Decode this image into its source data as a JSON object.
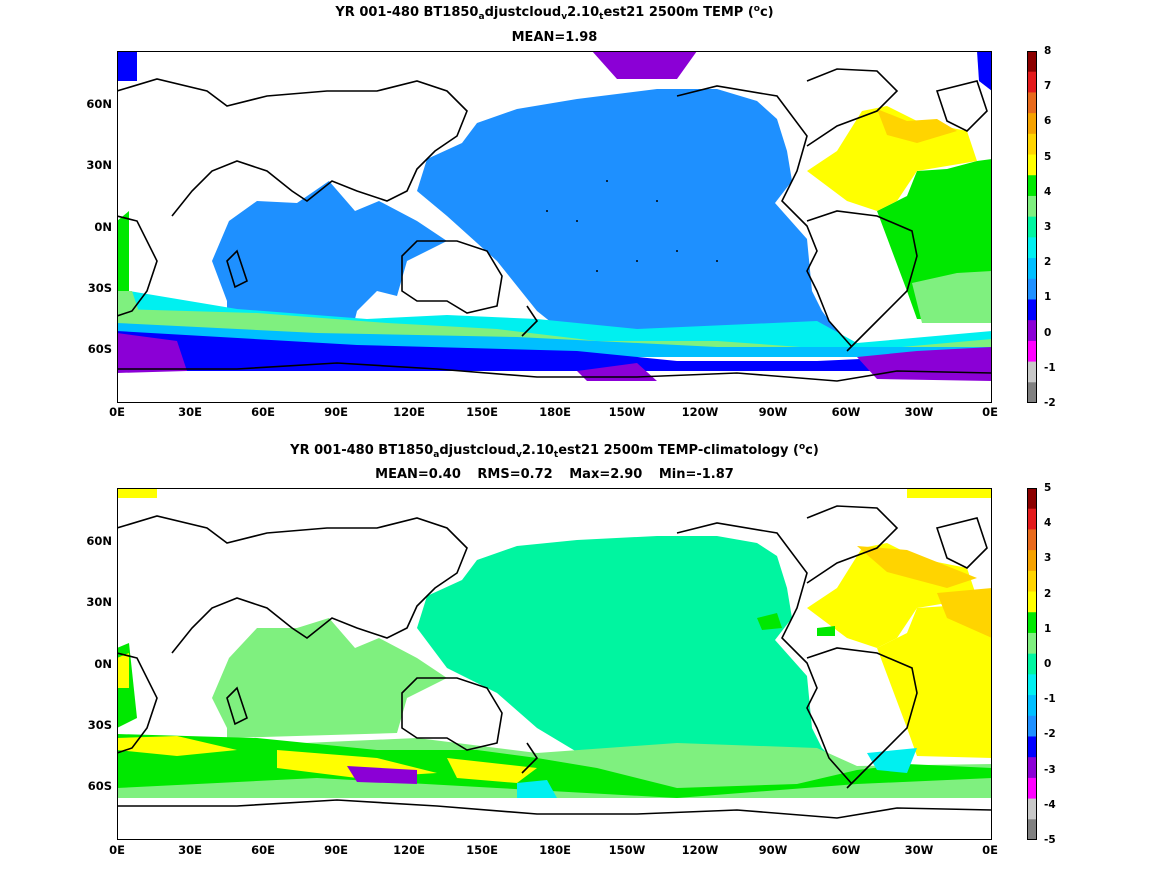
{
  "panels": [
    {
      "title_parts": {
        "a": "YR 001-480 BT1850",
        "s1": "a",
        "b": "djustcloud",
        "s2": "v",
        "c": "2.10",
        "s3": "t",
        "d": "est21 2500m TEMP (",
        "sup": "o",
        "e": "c)"
      },
      "stats": [
        "MEAN=1.98"
      ],
      "colorbar_labels": [
        "8",
        "7",
        "6",
        "5",
        "4",
        "3",
        "2",
        "1",
        "0",
        "-1",
        "-2"
      ],
      "colorbar_colors": [
        "#8b0000",
        "#e31a1c",
        "#e86a1c",
        "#f5a200",
        "#ffd400",
        "#ffff00",
        "#00e800",
        "#7ff07f",
        "#00f5a0",
        "#00f0f0",
        "#00bfff",
        "#1e90ff",
        "#0000ff",
        "#8b00d6",
        "#ff00ff",
        "#c8c8c8",
        "#808080"
      ]
    },
    {
      "title_parts": {
        "a": "YR 001-480 BT1850",
        "s1": "a",
        "b": "djustcloud",
        "s2": "v",
        "c": "2.10",
        "s3": "t",
        "d": "est21 2500m TEMP-climatology (",
        "sup": "o",
        "e": "c)"
      },
      "stats": [
        "MEAN=0.40",
        "RMS=0.72",
        "Max=2.90",
        "Min=-1.87"
      ],
      "colorbar_labels": [
        "5",
        "4",
        "3",
        "2",
        "1",
        "0",
        "-1",
        "-2",
        "-3",
        "-4",
        "-5"
      ],
      "colorbar_colors": [
        "#8b0000",
        "#e31a1c",
        "#e86a1c",
        "#f5a200",
        "#ffd400",
        "#ffff00",
        "#00e800",
        "#7ff07f",
        "#00f5a0",
        "#00f0f0",
        "#00bfff",
        "#1e90ff",
        "#0000ff",
        "#8b00d6",
        "#ff00ff",
        "#c8c8c8",
        "#808080"
      ]
    }
  ],
  "x_ticks": [
    "0E",
    "30E",
    "60E",
    "90E",
    "120E",
    "150E",
    "180E",
    "150W",
    "120W",
    "90W",
    "60W",
    "30W",
    "0E"
  ],
  "y_ticks": [
    "60N",
    "30N",
    "0N",
    "30S",
    "60S"
  ],
  "fill_colors": {
    "top_atlantic_north": "#ffff00",
    "top_atlantic_north_core": "#ffd400",
    "top_atlantic_south": "#00e800",
    "top_atlantic_south_lo": "#7ff07f",
    "top_pacific": "#1e90ff",
    "top_indian": "#1e90ff",
    "top_southern1": "#00f0f0",
    "top_southern2": "#00bfff",
    "top_southern3": "#7ff07f",
    "top_southern4": "#0000ff",
    "top_southern5": "#8b00d6",
    "top_arctic": "#8b00d6",
    "bot_pacific": "#00f5a0",
    "bot_indian": "#7ff07f",
    "bot_atlantic": "#ffff00",
    "bot_atlantic_core": "#ffd400",
    "bot_southern_green": "#00e800",
    "bot_southern_lo": "#7ff07f",
    "bot_southern_y": "#ffff00",
    "bot_southern_p": "#8b00d6"
  }
}
